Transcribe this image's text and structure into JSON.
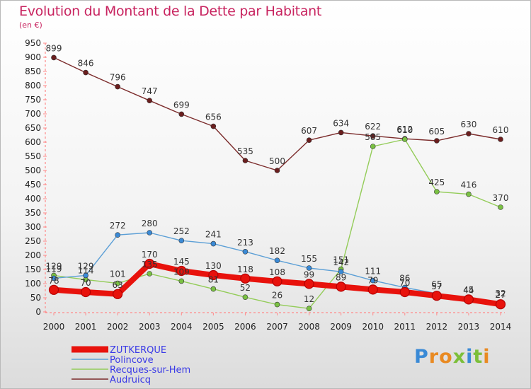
{
  "header": {
    "title": "Evolution du Montant de la Dette par Habitant",
    "subtitle": "(en €)"
  },
  "logo": {
    "text": "Proxiti",
    "letter_colors": [
      "#3a8ad6",
      "#e98a22",
      "#e98a22",
      "#7cbf3a",
      "#3a8ad6",
      "#7cbf3a",
      "#e98a22"
    ]
  },
  "chart_data": {
    "type": "line",
    "title": "Evolution du Montant de la Dette par Habitant",
    "subtitle": "(en €)",
    "x": [
      2000,
      2001,
      2002,
      2003,
      2004,
      2005,
      2006,
      2007,
      2008,
      2009,
      2010,
      2011,
      2012,
      2013,
      2014
    ],
    "ylim": [
      0,
      950
    ],
    "y_ticks": [
      0,
      50,
      100,
      150,
      200,
      250,
      300,
      350,
      400,
      450,
      500,
      550,
      600,
      650,
      700,
      750,
      800,
      850,
      900,
      950
    ],
    "grid": false,
    "legend_position": "bottom-left",
    "series": [
      {
        "name": "Audruicq",
        "color": "#7b2b2b",
        "marker": "#6b1e1e",
        "values": [
          899,
          846,
          796,
          747,
          699,
          656,
          535,
          500,
          607,
          634,
          622,
          612,
          605,
          630,
          610
        ]
      },
      {
        "name": "Recques-sur-Hem",
        "color": "#93cc58",
        "marker": "#7ac143",
        "values": [
          129,
          114,
          101,
          135,
          109,
          81,
          52,
          26,
          12,
          151,
          585,
          610,
          425,
          416,
          370
        ]
      },
      {
        "name": "Polincove",
        "color": "#5b9fd6",
        "marker": "#3a8ad6",
        "values": [
          119,
          129,
          272,
          280,
          252,
          241,
          213,
          182,
          155,
          142,
          111,
          86,
          65,
          45,
          32
        ]
      },
      {
        "name": "ZUTKERQUE",
        "color": "#e8120c",
        "marker": "#e8120c",
        "values": [
          78,
          70,
          63,
          170,
          145,
          130,
          118,
          108,
          99,
          89,
          79,
          70,
          57,
          44,
          27
        ]
      }
    ],
    "legend_order": [
      "ZUTKERQUE",
      "Polincove",
      "Recques-sur-Hem",
      "Audruicq"
    ]
  }
}
